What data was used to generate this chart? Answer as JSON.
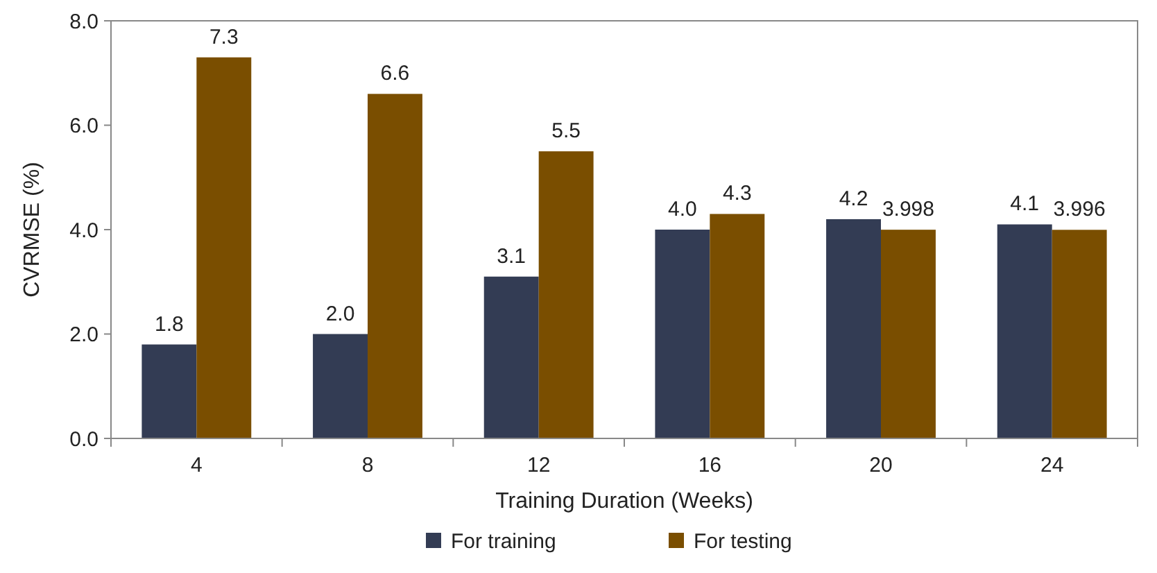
{
  "chart_data": {
    "type": "bar",
    "xlabel": "Training Duration (Weeks)",
    "ylabel": "CVRMSE (%)",
    "categories": [
      "4",
      "8",
      "12",
      "16",
      "20",
      "24"
    ],
    "series": [
      {
        "name": "For training",
        "color": "#333c54",
        "values": [
          1.8,
          2.0,
          3.1,
          4.0,
          4.2,
          4.1
        ],
        "value_labels": [
          "1.8",
          "2.0",
          "3.1",
          "4.0",
          "4.2",
          "4.1"
        ]
      },
      {
        "name": "For testing",
        "color": "#7a4e00",
        "values": [
          7.3,
          6.6,
          5.5,
          4.3,
          3.998,
          3.996
        ],
        "value_labels": [
          "7.3",
          "6.6",
          "5.5",
          "4.3",
          "3.998",
          "3.996"
        ]
      }
    ],
    "ylim": [
      0,
      8
    ],
    "yticks": [
      {
        "value": 0,
        "label": "0.0"
      },
      {
        "value": 2,
        "label": "2.0"
      },
      {
        "value": 4,
        "label": "4.0"
      },
      {
        "value": 6,
        "label": "6.0"
      },
      {
        "value": 8,
        "label": "8.0"
      }
    ],
    "grid": false,
    "legend": "bottom"
  }
}
